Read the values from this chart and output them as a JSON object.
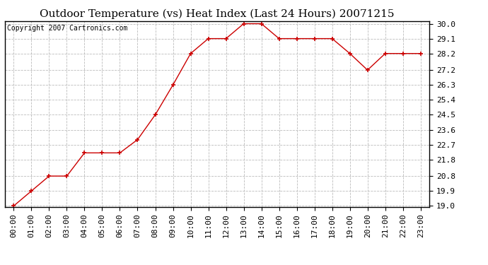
{
  "title": "Outdoor Temperature (vs) Heat Index (Last 24 Hours) 20071215",
  "copyright_text": "Copyright 2007 Cartronics.com",
  "x_labels": [
    "00:00",
    "01:00",
    "02:00",
    "03:00",
    "04:00",
    "05:00",
    "06:00",
    "07:00",
    "08:00",
    "09:00",
    "10:00",
    "11:00",
    "12:00",
    "13:00",
    "14:00",
    "15:00",
    "16:00",
    "17:00",
    "18:00",
    "19:00",
    "20:00",
    "21:00",
    "22:00",
    "23:00"
  ],
  "y_values": [
    19.0,
    19.9,
    20.8,
    20.8,
    22.2,
    22.2,
    22.2,
    23.0,
    24.5,
    26.3,
    28.2,
    29.1,
    29.1,
    30.0,
    30.0,
    29.1,
    29.1,
    29.1,
    29.1,
    28.2,
    27.2,
    28.2,
    28.2,
    28.2
  ],
  "y_ticks": [
    19.0,
    19.9,
    20.8,
    21.8,
    22.7,
    23.6,
    24.5,
    25.4,
    26.3,
    27.2,
    28.2,
    29.1,
    30.0
  ],
  "ylim_min": 18.95,
  "ylim_max": 30.15,
  "line_color": "#cc0000",
  "marker": "+",
  "marker_size": 5,
  "marker_color": "#cc0000",
  "bg_color": "#ffffff",
  "grid_color": "#bbbbbb",
  "title_fontsize": 11,
  "copyright_fontsize": 7,
  "tick_fontsize": 8,
  "title_font": "DejaVu Serif",
  "copyright_font": "DejaVu Sans Mono",
  "tick_font": "DejaVu Sans Mono"
}
